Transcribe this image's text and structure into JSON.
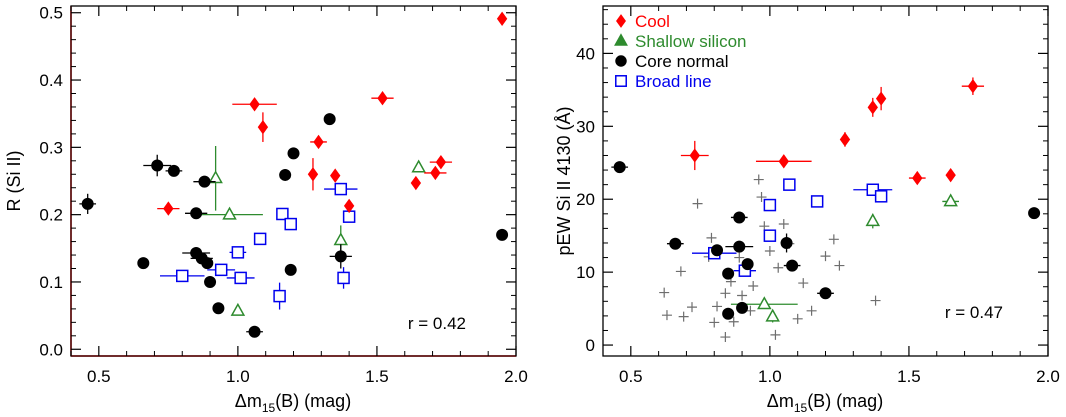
{
  "colors": {
    "cool": "#ff0000",
    "shallow": "#2e8b2e",
    "core": "#000000",
    "broad": "#0000ee",
    "other": "#6e6e6e",
    "frame_left": "#5a0000"
  },
  "chart_data": [
    {
      "type": "scatter",
      "title": "",
      "xlabel_prefix": "Δm",
      "xlabel_sub": "15",
      "xlabel_suffix": "(B) (mag)",
      "ylabel": "R (Si II)",
      "xlim": [
        0.4,
        2.0
      ],
      "ylim": [
        -0.01,
        0.51
      ],
      "xticks": [
        {
          "value": 0.5,
          "label": "0.5"
        },
        {
          "value": 1.0,
          "label": "1.0"
        },
        {
          "value": 1.5,
          "label": "1.5"
        },
        {
          "value": 2.0,
          "label": "2.0"
        }
      ],
      "yticks": [
        {
          "value": 0.0,
          "label": "0.0"
        },
        {
          "value": 0.1,
          "label": "0.1"
        },
        {
          "value": 0.2,
          "label": "0.2"
        },
        {
          "value": 0.3,
          "label": "0.3"
        },
        {
          "value": 0.4,
          "label": "0.4"
        },
        {
          "value": 0.5,
          "label": "0.5"
        }
      ],
      "annotation": "r = 0.42",
      "series": [
        {
          "key": "cool",
          "marker": "diamond",
          "filled": true,
          "points": [
            {
              "x": 0.75,
              "y": 0.209,
              "ex": 0.04,
              "ey": 0.0
            },
            {
              "x": 1.06,
              "y": 0.364,
              "ex": 0.08,
              "ey": 0.0
            },
            {
              "x": 1.09,
              "y": 0.33,
              "ex": 0.0,
              "ey": 0.022
            },
            {
              "x": 1.27,
              "y": 0.26,
              "ex": 0.0,
              "ey": 0.024
            },
            {
              "x": 1.29,
              "y": 0.308,
              "ex": 0.03,
              "ey": 0.0
            },
            {
              "x": 1.35,
              "y": 0.258,
              "ex": 0.0,
              "ey": 0.0
            },
            {
              "x": 1.4,
              "y": 0.213,
              "ex": 0.0,
              "ey": 0.0
            },
            {
              "x": 1.52,
              "y": 0.373,
              "ex": 0.04,
              "ey": 0.0
            },
            {
              "x": 1.64,
              "y": 0.247,
              "ex": 0.0,
              "ey": 0.0
            },
            {
              "x": 1.71,
              "y": 0.262,
              "ex": 0.04,
              "ey": 0.0
            },
            {
              "x": 1.73,
              "y": 0.278,
              "ex": 0.04,
              "ey": 0.0
            },
            {
              "x": 1.95,
              "y": 0.491,
              "ex": 0.0,
              "ey": 0.0
            }
          ]
        },
        {
          "key": "shallow",
          "marker": "triangle",
          "filled": false,
          "points": [
            {
              "x": 0.92,
              "y": 0.254,
              "ex": 0.0,
              "ey": 0.048
            },
            {
              "x": 0.97,
              "y": 0.2,
              "ex": 0.12,
              "ey": 0.0
            },
            {
              "x": 1.0,
              "y": 0.057,
              "ex": 0.0,
              "ey": 0.0
            },
            {
              "x": 1.37,
              "y": 0.162,
              "ex": 0.0,
              "ey": 0.022
            },
            {
              "x": 1.65,
              "y": 0.27,
              "ex": 0.0,
              "ey": 0.0
            }
          ]
        },
        {
          "key": "core",
          "marker": "circle",
          "filled": true,
          "points": [
            {
              "x": 0.46,
              "y": 0.216,
              "ex": 0.03,
              "ey": 0.015
            },
            {
              "x": 0.66,
              "y": 0.128,
              "ex": 0.0,
              "ey": 0.0
            },
            {
              "x": 0.71,
              "y": 0.273,
              "ex": 0.05,
              "ey": 0.016
            },
            {
              "x": 0.77,
              "y": 0.265,
              "ex": 0.03,
              "ey": 0.0
            },
            {
              "x": 0.85,
              "y": 0.202,
              "ex": 0.04,
              "ey": 0.0
            },
            {
              "x": 0.85,
              "y": 0.143,
              "ex": 0.05,
              "ey": 0.0
            },
            {
              "x": 0.87,
              "y": 0.135,
              "ex": 0.04,
              "ey": 0.0
            },
            {
              "x": 0.88,
              "y": 0.249,
              "ex": 0.04,
              "ey": 0.0
            },
            {
              "x": 0.89,
              "y": 0.128,
              "ex": 0.0,
              "ey": 0.0
            },
            {
              "x": 0.9,
              "y": 0.1,
              "ex": 0.0,
              "ey": 0.0
            },
            {
              "x": 0.93,
              "y": 0.061,
              "ex": 0.0,
              "ey": 0.0
            },
            {
              "x": 1.06,
              "y": 0.026,
              "ex": 0.03,
              "ey": 0.0
            },
            {
              "x": 1.17,
              "y": 0.259,
              "ex": 0.0,
              "ey": 0.0
            },
            {
              "x": 1.19,
              "y": 0.118,
              "ex": 0.0,
              "ey": 0.0
            },
            {
              "x": 1.2,
              "y": 0.291,
              "ex": 0.0,
              "ey": 0.0
            },
            {
              "x": 1.33,
              "y": 0.342,
              "ex": 0.0,
              "ey": 0.0
            },
            {
              "x": 1.37,
              "y": 0.138,
              "ex": 0.04,
              "ey": 0.018
            },
            {
              "x": 1.95,
              "y": 0.17,
              "ex": 0.0,
              "ey": 0.0
            }
          ]
        },
        {
          "key": "broad",
          "marker": "square",
          "filled": false,
          "points": [
            {
              "x": 0.8,
              "y": 0.109,
              "ex": 0.08,
              "ey": 0.0
            },
            {
              "x": 0.94,
              "y": 0.118,
              "ex": 0.05,
              "ey": 0.0
            },
            {
              "x": 1.0,
              "y": 0.144,
              "ex": 0.03,
              "ey": 0.0
            },
            {
              "x": 1.01,
              "y": 0.106,
              "ex": 0.05,
              "ey": 0.0
            },
            {
              "x": 1.08,
              "y": 0.164,
              "ex": 0.0,
              "ey": 0.0
            },
            {
              "x": 1.15,
              "y": 0.079,
              "ex": 0.0,
              "ey": 0.02
            },
            {
              "x": 1.16,
              "y": 0.201,
              "ex": 0.0,
              "ey": 0.0
            },
            {
              "x": 1.19,
              "y": 0.186,
              "ex": 0.0,
              "ey": 0.0
            },
            {
              "x": 1.37,
              "y": 0.238,
              "ex": 0.06,
              "ey": 0.0
            },
            {
              "x": 1.38,
              "y": 0.106,
              "ex": 0.0,
              "ey": 0.016
            },
            {
              "x": 1.4,
              "y": 0.197,
              "ex": 0.0,
              "ey": 0.0
            }
          ]
        }
      ]
    },
    {
      "type": "scatter",
      "title": "",
      "xlabel_prefix": "Δm",
      "xlabel_sub": "15",
      "xlabel_suffix": "(B) (mag)",
      "ylabel": "pEW Si II 4130 (Å)",
      "xlim": [
        0.4,
        2.0
      ],
      "ylim": [
        -1.5,
        46.5
      ],
      "xticks": [
        {
          "value": 0.5,
          "label": "0.5"
        },
        {
          "value": 1.0,
          "label": "1.0"
        },
        {
          "value": 1.5,
          "label": "1.5"
        },
        {
          "value": 2.0,
          "label": "2.0"
        }
      ],
      "yticks": [
        {
          "value": 0,
          "label": "0"
        },
        {
          "value": 10,
          "label": "10"
        },
        {
          "value": 20,
          "label": "20"
        },
        {
          "value": 30,
          "label": "30"
        },
        {
          "value": 40,
          "label": "40"
        }
      ],
      "annotation": "r = 0.47",
      "legend": [
        {
          "key": "cool",
          "label": "Cool",
          "marker": "diamond",
          "filled": true
        },
        {
          "key": "shallow",
          "label": "Shallow silicon",
          "marker": "triangle",
          "filled": true
        },
        {
          "key": "core",
          "label": "Core normal",
          "marker": "circle",
          "filled": true
        },
        {
          "key": "broad",
          "label": "Broad line",
          "marker": "square",
          "filled": false
        }
      ],
      "series": [
        {
          "key": "cool",
          "marker": "diamond",
          "filled": true,
          "points": [
            {
              "x": 0.73,
              "y": 26.0,
              "ex": 0.05,
              "ey": 2.0
            },
            {
              "x": 1.05,
              "y": 25.2,
              "ex": 0.1,
              "ey": 0.0
            },
            {
              "x": 1.27,
              "y": 28.2,
              "ex": 0.0,
              "ey": 1.0
            },
            {
              "x": 1.37,
              "y": 32.6,
              "ex": 0.0,
              "ey": 1.3
            },
            {
              "x": 1.4,
              "y": 33.8,
              "ex": 0.0,
              "ey": 1.6
            },
            {
              "x": 1.53,
              "y": 22.9,
              "ex": 0.03,
              "ey": 0.0
            },
            {
              "x": 1.65,
              "y": 23.3,
              "ex": 0.0,
              "ey": 0.0
            },
            {
              "x": 1.73,
              "y": 35.5,
              "ex": 0.04,
              "ey": 1.2
            }
          ]
        },
        {
          "key": "shallow",
          "marker": "triangle",
          "filled": false,
          "points": [
            {
              "x": 0.98,
              "y": 5.6,
              "ex": 0.12,
              "ey": 0.0
            },
            {
              "x": 1.01,
              "y": 3.9,
              "ex": 0.0,
              "ey": 0.8
            },
            {
              "x": 1.37,
              "y": 17.0,
              "ex": 0.0,
              "ey": 1.0
            },
            {
              "x": 1.65,
              "y": 19.7,
              "ex": 0.03,
              "ey": 0.0
            }
          ]
        },
        {
          "key": "core",
          "marker": "circle",
          "filled": true,
          "points": [
            {
              "x": 0.46,
              "y": 24.4,
              "ex": 0.03,
              "ey": 0.0
            },
            {
              "x": 0.66,
              "y": 13.9,
              "ex": 0.03,
              "ey": 0.0
            },
            {
              "x": 0.81,
              "y": 13.0,
              "ex": 0.02,
              "ey": 0.0
            },
            {
              "x": 0.85,
              "y": 9.8,
              "ex": 0.0,
              "ey": 0.0
            },
            {
              "x": 0.85,
              "y": 4.3,
              "ex": 0.02,
              "ey": 0.0
            },
            {
              "x": 0.89,
              "y": 13.5,
              "ex": 0.05,
              "ey": 0.0
            },
            {
              "x": 0.89,
              "y": 17.5,
              "ex": 0.03,
              "ey": 0.0
            },
            {
              "x": 0.9,
              "y": 5.1,
              "ex": 0.0,
              "ey": 0.0
            },
            {
              "x": 0.92,
              "y": 11.1,
              "ex": 0.0,
              "ey": 0.0
            },
            {
              "x": 1.06,
              "y": 14.0,
              "ex": 0.0,
              "ey": 1.3
            },
            {
              "x": 1.08,
              "y": 10.9,
              "ex": 0.03,
              "ey": 0.0
            },
            {
              "x": 1.2,
              "y": 7.1,
              "ex": 0.03,
              "ey": 0.0
            },
            {
              "x": 1.95,
              "y": 18.1,
              "ex": 0.0,
              "ey": 0.0
            }
          ]
        },
        {
          "key": "broad",
          "marker": "square",
          "filled": false,
          "points": [
            {
              "x": 0.8,
              "y": 12.6,
              "ex": 0.08,
              "ey": 0.0
            },
            {
              "x": 0.91,
              "y": 10.2,
              "ex": 0.04,
              "ey": 0.0
            },
            {
              "x": 1.0,
              "y": 19.2,
              "ex": 0.0,
              "ey": 0.0
            },
            {
              "x": 1.0,
              "y": 15.0,
              "ex": 0.0,
              "ey": 0.0
            },
            {
              "x": 1.07,
              "y": 22.0,
              "ex": 0.0,
              "ey": 0.0
            },
            {
              "x": 1.17,
              "y": 19.7,
              "ex": 0.0,
              "ey": 0.0
            },
            {
              "x": 1.37,
              "y": 21.3,
              "ex": 0.07,
              "ey": 0.0
            },
            {
              "x": 1.4,
              "y": 20.4,
              "ex": 0.0,
              "ey": 0.0
            }
          ]
        },
        {
          "key": "other",
          "marker": "plus",
          "filled": false,
          "points": [
            {
              "x": 0.62,
              "y": 7.2
            },
            {
              "x": 0.63,
              "y": 4.1
            },
            {
              "x": 0.68,
              "y": 10.1
            },
            {
              "x": 0.69,
              "y": 3.9
            },
            {
              "x": 0.72,
              "y": 5.2
            },
            {
              "x": 0.74,
              "y": 19.4
            },
            {
              "x": 0.78,
              "y": 12.1
            },
            {
              "x": 0.79,
              "y": 14.7
            },
            {
              "x": 0.8,
              "y": 3.1
            },
            {
              "x": 0.81,
              "y": 5.3
            },
            {
              "x": 0.84,
              "y": 1.1
            },
            {
              "x": 0.84,
              "y": 7.1
            },
            {
              "x": 0.86,
              "y": 8.7
            },
            {
              "x": 0.87,
              "y": 3.2
            },
            {
              "x": 0.89,
              "y": 12.0
            },
            {
              "x": 0.9,
              "y": 6.8
            },
            {
              "x": 0.93,
              "y": 4.7
            },
            {
              "x": 0.94,
              "y": 8.1
            },
            {
              "x": 0.96,
              "y": 22.7
            },
            {
              "x": 0.97,
              "y": 20.3
            },
            {
              "x": 0.98,
              "y": 16.3
            },
            {
              "x": 1.0,
              "y": 12.9
            },
            {
              "x": 1.02,
              "y": 1.4
            },
            {
              "x": 1.03,
              "y": 10.6
            },
            {
              "x": 1.05,
              "y": 16.6
            },
            {
              "x": 1.07,
              "y": 13.9
            },
            {
              "x": 1.1,
              "y": 3.6
            },
            {
              "x": 1.12,
              "y": 8.5
            },
            {
              "x": 1.15,
              "y": 4.7
            },
            {
              "x": 1.2,
              "y": 12.2
            },
            {
              "x": 1.23,
              "y": 14.5
            },
            {
              "x": 1.25,
              "y": 10.9
            },
            {
              "x": 1.38,
              "y": 6.1
            }
          ]
        }
      ]
    }
  ]
}
